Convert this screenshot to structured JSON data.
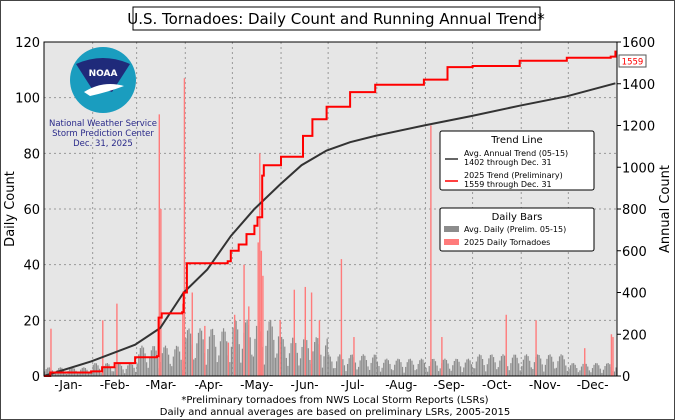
{
  "chart_data": {
    "type": "bar+line",
    "title": "U.S. Tornadoes: Daily Count and Running Annual Trend*",
    "ylabel_left": "Daily Count",
    "ylabel_right": "Annual Count",
    "ylim_left": [
      0,
      120
    ],
    "ylim_right": [
      0,
      1600
    ],
    "yticks_left": [
      "0",
      "20",
      "40",
      "60",
      "80",
      "100",
      "120"
    ],
    "yticks_right": [
      "0",
      "200",
      "400",
      "600",
      "800",
      "1000",
      "1200",
      "1400",
      "1600"
    ],
    "month_labels": [
      "-Jan-",
      "-Feb-",
      "-Mar-",
      "-Apr-",
      "-May-",
      "-Jun-",
      "-Jul-",
      "-Aug-",
      "-Sep-",
      "-Oct-",
      "-Nov-",
      "-Dec-"
    ],
    "grid": true,
    "end_label": "1559",
    "legend_trend": {
      "title": "Trend Line",
      "items": [
        {
          "label1": "Avg. Annual Trend (05-15)",
          "label2": "1402 through Dec. 31",
          "color": "#333333"
        },
        {
          "label1": "2025 Trend (Preliminary)",
          "label2": "1559 through Dec. 31",
          "color": "#ff0000"
        }
      ]
    },
    "legend_bars": {
      "title": "Daily Bars",
      "items": [
        {
          "label": "Avg. Daily (Prelim. 05-15)",
          "color": "#8c8c8c"
        },
        {
          "label": "2025 Daily Tornadoes",
          "color": "#ff7b7b"
        }
      ]
    },
    "series": [
      {
        "name": "Avg. Annual Trend (05-15)",
        "axis": "right",
        "color": "#333333",
        "points": [
          [
            1,
            0
          ],
          [
            31,
            70
          ],
          [
            59,
            150
          ],
          [
            75,
            230
          ],
          [
            90,
            400
          ],
          [
            105,
            510
          ],
          [
            120,
            670
          ],
          [
            135,
            800
          ],
          [
            151,
            915
          ],
          [
            165,
            1010
          ],
          [
            181,
            1080
          ],
          [
            196,
            1120
          ],
          [
            212,
            1150
          ],
          [
            243,
            1200
          ],
          [
            273,
            1245
          ],
          [
            304,
            1295
          ],
          [
            334,
            1340
          ],
          [
            365,
            1402
          ]
        ]
      },
      {
        "name": "2025 Trend (Preliminary)",
        "axis": "right",
        "color": "#ff0000",
        "points": [
          [
            1,
            0
          ],
          [
            5,
            17
          ],
          [
            31,
            22
          ],
          [
            38,
            42
          ],
          [
            46,
            62
          ],
          [
            59,
            90
          ],
          [
            73,
            95
          ],
          [
            74,
            280
          ],
          [
            76,
            300
          ],
          [
            89,
            305
          ],
          [
            90,
            400
          ],
          [
            92,
            540
          ],
          [
            118,
            550
          ],
          [
            120,
            600
          ],
          [
            125,
            630
          ],
          [
            130,
            680
          ],
          [
            135,
            720
          ],
          [
            137,
            760
          ],
          [
            140,
            960
          ],
          [
            141,
            1010
          ],
          [
            152,
            1050
          ],
          [
            166,
            1150
          ],
          [
            172,
            1230
          ],
          [
            181,
            1290
          ],
          [
            196,
            1360
          ],
          [
            212,
            1395
          ],
          [
            243,
            1420
          ],
          [
            258,
            1480
          ],
          [
            274,
            1485
          ],
          [
            304,
            1510
          ],
          [
            334,
            1525
          ],
          [
            362,
            1530
          ],
          [
            365,
            1559
          ]
        ]
      },
      {
        "name": "2025 Daily Tornadoes",
        "axis": "left",
        "color": "#ff7b7b",
        "type": "bar",
        "points": [
          [
            5,
            17
          ],
          [
            38,
            20
          ],
          [
            47,
            26
          ],
          [
            74,
            94
          ],
          [
            75,
            60
          ],
          [
            89,
            26
          ],
          [
            90,
            107
          ],
          [
            95,
            30
          ],
          [
            103,
            18
          ],
          [
            118,
            12
          ],
          [
            122,
            22
          ],
          [
            128,
            40
          ],
          [
            131,
            25
          ],
          [
            137,
            48
          ],
          [
            138,
            80
          ],
          [
            139,
            45
          ],
          [
            140,
            36
          ],
          [
            151,
            20
          ],
          [
            160,
            31
          ],
          [
            167,
            32
          ],
          [
            171,
            30
          ],
          [
            176,
            20
          ],
          [
            190,
            42
          ],
          [
            198,
            14
          ],
          [
            247,
            90
          ],
          [
            254,
            14
          ],
          [
            295,
            22
          ],
          [
            314,
            20
          ],
          [
            345,
            10
          ],
          [
            362,
            15
          ],
          [
            363,
            14
          ]
        ]
      }
    ],
    "avg_daily_by_month": [
      2,
      3,
      7,
      11,
      13,
      9,
      5,
      4,
      4,
      5,
      5,
      3
    ]
  },
  "logo": {
    "text": "NOAA",
    "line1": "National Weather Service",
    "line2": "Storm Prediction Center",
    "line3": "Dec. 31, 2025"
  },
  "footnote1": "*Preliminary tornadoes from NWS Local Storm Reports (LSRs)",
  "footnote2": "Daily and annual averages are based on preliminary LSRs, 2005-2015"
}
